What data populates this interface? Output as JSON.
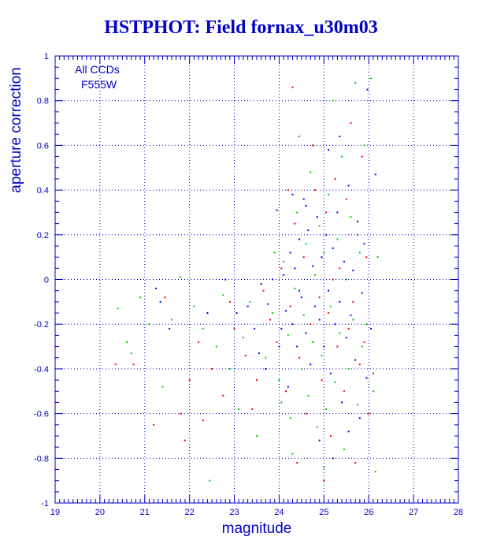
{
  "chart_data": {
    "type": "scatter",
    "title": "HSTPHOT: Field fornax_u30m03",
    "xlabel": "magnitude",
    "ylabel": "aperture correction",
    "xlim": [
      19,
      28
    ],
    "ylim": [
      -1,
      1
    ],
    "xticks": [
      "19",
      "20",
      "21",
      "22",
      "23",
      "24",
      "25",
      "26",
      "27",
      "28"
    ],
    "yticks": [
      "-1",
      "-0.8",
      "-0.6",
      "-0.4",
      "-0.2",
      "0",
      "0.2",
      "0.4",
      "0.6",
      "0.8",
      "1"
    ],
    "grid": true,
    "grid_style": "dotted",
    "annotations": [
      "All CCDs",
      "F555W"
    ],
    "colors": {
      "axis": "#0000c8",
      "blue_points": "#0000ff",
      "red_points": "#ff0000",
      "green_points": "#00cc00"
    },
    "series": [
      {
        "color": "#0000ff",
        "points": [
          [
            21.25,
            -0.04
          ],
          [
            21.35,
            -0.1
          ],
          [
            21.55,
            -0.22
          ],
          [
            22.4,
            -0.15
          ],
          [
            22.8,
            0.0
          ],
          [
            23.05,
            -0.15
          ],
          [
            23.3,
            -0.12
          ],
          [
            23.45,
            -0.22
          ],
          [
            23.55,
            -0.33
          ],
          [
            23.6,
            -0.02
          ],
          [
            23.75,
            -0.11
          ],
          [
            23.85,
            0.0
          ],
          [
            23.95,
            0.31
          ],
          [
            24.05,
            -0.22
          ],
          [
            24.1,
            0.02
          ],
          [
            24.15,
            -0.14
          ],
          [
            24.2,
            -0.48
          ],
          [
            24.25,
            0.12
          ],
          [
            24.3,
            -0.2
          ],
          [
            24.35,
            0.05
          ],
          [
            24.4,
            -0.3
          ],
          [
            24.45,
            0.18
          ],
          [
            24.5,
            -0.08
          ],
          [
            24.55,
            0.36
          ],
          [
            24.6,
            -0.24
          ],
          [
            24.65,
            0.22
          ],
          [
            24.7,
            -0.38
          ],
          [
            24.75,
            0.06
          ],
          [
            24.8,
            -0.12
          ],
          [
            24.85,
            0.28
          ],
          [
            24.9,
            -0.18
          ],
          [
            24.95,
            0.1
          ],
          [
            25.0,
            -0.3
          ],
          [
            25.05,
            0.2
          ],
          [
            25.1,
            -0.05
          ],
          [
            25.15,
            -0.42
          ],
          [
            25.2,
            0.14
          ],
          [
            25.25,
            -0.2
          ],
          [
            25.3,
            0.3
          ],
          [
            25.35,
            -0.1
          ],
          [
            25.4,
            -0.55
          ],
          [
            25.45,
            0.08
          ],
          [
            25.5,
            -0.26
          ],
          [
            25.55,
            0.42
          ],
          [
            25.6,
            -0.16
          ],
          [
            25.65,
            0.04
          ],
          [
            25.7,
            -0.36
          ],
          [
            25.75,
            0.26
          ],
          [
            25.8,
            -0.62
          ],
          [
            25.85,
            -0.06
          ],
          [
            25.9,
            0.16
          ],
          [
            25.95,
            -0.44
          ],
          [
            25.97,
            0.85
          ],
          [
            26.05,
            -0.22
          ],
          [
            26.15,
            0.47
          ],
          [
            24.3,
            0.38
          ],
          [
            24.6,
            0.33
          ],
          [
            25.1,
            0.58
          ],
          [
            25.35,
            0.64
          ],
          [
            24.9,
            -0.72
          ],
          [
            25.55,
            -0.68
          ],
          [
            24.45,
            -0.05
          ],
          [
            23.7,
            -0.4
          ],
          [
            24.0,
            -0.3
          ],
          [
            25.2,
            -0.8
          ]
        ]
      },
      {
        "color": "#ff0000",
        "points": [
          [
            20.35,
            -0.38
          ],
          [
            20.75,
            -0.38
          ],
          [
            21.2,
            -0.65
          ],
          [
            21.45,
            -0.08
          ],
          [
            21.8,
            -0.6
          ],
          [
            21.9,
            -0.72
          ],
          [
            22.0,
            -0.45
          ],
          [
            22.2,
            -0.28
          ],
          [
            22.3,
            -0.63
          ],
          [
            22.5,
            -0.4
          ],
          [
            22.75,
            -0.52
          ],
          [
            23.0,
            -0.22
          ],
          [
            23.25,
            -0.34
          ],
          [
            23.5,
            -0.45
          ],
          [
            23.65,
            -0.05
          ],
          [
            23.8,
            -0.18
          ],
          [
            23.95,
            -0.28
          ],
          [
            24.05,
            0.05
          ],
          [
            24.15,
            -0.5
          ],
          [
            24.25,
            -0.12
          ],
          [
            24.3,
            0.86
          ],
          [
            24.35,
            0.25
          ],
          [
            24.45,
            -0.35
          ],
          [
            24.55,
            0.1
          ],
          [
            24.6,
            -0.6
          ],
          [
            24.7,
            -0.2
          ],
          [
            24.75,
            0.6
          ],
          [
            24.8,
            0.4
          ],
          [
            24.9,
            -0.08
          ],
          [
            24.95,
            -0.45
          ],
          [
            25.05,
            0.3
          ],
          [
            25.1,
            -0.15
          ],
          [
            25.15,
            -0.7
          ],
          [
            25.25,
            0.45
          ],
          [
            25.3,
            -0.3
          ],
          [
            25.35,
            0.05
          ],
          [
            25.45,
            -0.5
          ],
          [
            25.5,
            0.36
          ],
          [
            25.55,
            -0.22
          ],
          [
            25.6,
            0.7
          ],
          [
            25.65,
            -0.1
          ],
          [
            25.7,
            -0.82
          ],
          [
            25.75,
            0.2
          ],
          [
            25.8,
            -0.38
          ],
          [
            25.85,
            0.55
          ],
          [
            25.9,
            -0.28
          ],
          [
            25.95,
            0.1
          ],
          [
            26.0,
            -0.6
          ],
          [
            26.1,
            -0.42
          ],
          [
            24.4,
            -0.82
          ],
          [
            25.0,
            -0.9
          ],
          [
            24.2,
            0.4
          ],
          [
            23.4,
            -0.58
          ],
          [
            22.9,
            -0.1
          ],
          [
            25.2,
            0.0
          ]
        ]
      },
      {
        "color": "#00cc00",
        "points": [
          [
            20.4,
            -0.13
          ],
          [
            20.6,
            -0.28
          ],
          [
            20.7,
            -0.33
          ],
          [
            20.9,
            -0.08
          ],
          [
            21.1,
            -0.2
          ],
          [
            21.4,
            -0.48
          ],
          [
            21.6,
            -0.18
          ],
          [
            21.8,
            0.01
          ],
          [
            22.1,
            -0.12
          ],
          [
            22.3,
            -0.22
          ],
          [
            22.45,
            -0.9
          ],
          [
            22.6,
            -0.3
          ],
          [
            22.75,
            -0.07
          ],
          [
            22.9,
            -0.4
          ],
          [
            23.1,
            -0.58
          ],
          [
            23.2,
            -0.26
          ],
          [
            23.35,
            -0.1
          ],
          [
            23.5,
            -0.7
          ],
          [
            23.7,
            -0.35
          ],
          [
            23.85,
            -0.15
          ],
          [
            24.0,
            -0.45
          ],
          [
            24.1,
            0.08
          ],
          [
            24.2,
            -0.25
          ],
          [
            24.25,
            -0.62
          ],
          [
            24.35,
            -0.04
          ],
          [
            24.4,
            0.3
          ],
          [
            24.5,
            -0.4
          ],
          [
            24.55,
            -0.16
          ],
          [
            24.6,
            0.16
          ],
          [
            24.65,
            -0.52
          ],
          [
            24.7,
            0.48
          ],
          [
            24.75,
            -0.28
          ],
          [
            24.8,
            0.02
          ],
          [
            24.85,
            -0.66
          ],
          [
            24.9,
            0.24
          ],
          [
            24.95,
            -0.34
          ],
          [
            25.0,
            0.12
          ],
          [
            25.05,
            -0.58
          ],
          [
            25.1,
            0.38
          ],
          [
            25.15,
            -0.12
          ],
          [
            25.2,
            0.8
          ],
          [
            25.25,
            -0.46
          ],
          [
            25.3,
            0.18
          ],
          [
            25.35,
            -0.24
          ],
          [
            25.4,
            0.55
          ],
          [
            25.45,
            -0.76
          ],
          [
            25.5,
            0.0
          ],
          [
            25.55,
            -0.4
          ],
          [
            25.6,
            0.28
          ],
          [
            25.65,
            -0.18
          ],
          [
            25.7,
            0.88
          ],
          [
            25.75,
            -0.56
          ],
          [
            25.8,
            0.12
          ],
          [
            25.85,
            -0.3
          ],
          [
            25.9,
            0.6
          ],
          [
            25.95,
            -0.2
          ],
          [
            26.05,
            0.9
          ],
          [
            26.1,
            -0.5
          ],
          [
            26.15,
            -0.86
          ],
          [
            26.2,
            0.1
          ],
          [
            24.3,
            -0.78
          ],
          [
            24.45,
            0.64
          ],
          [
            25.0,
            -0.84
          ],
          [
            23.9,
            0.12
          ],
          [
            24.05,
            -0.55
          ]
        ]
      }
    ]
  }
}
